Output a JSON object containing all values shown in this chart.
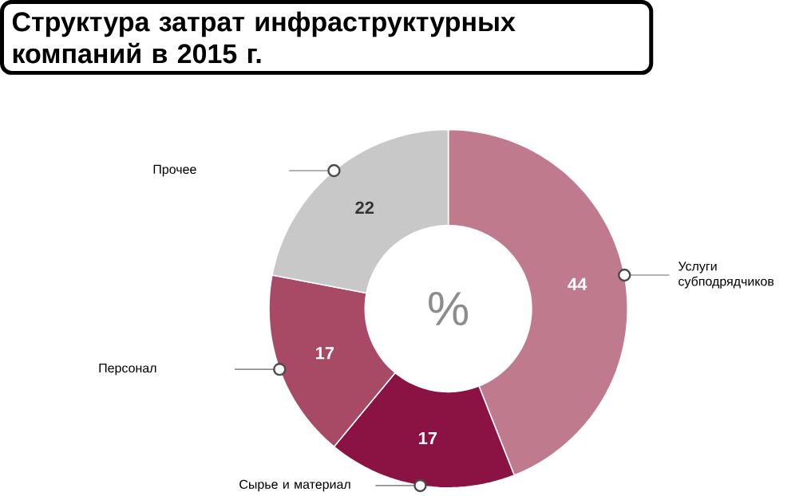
{
  "chart_data": {
    "type": "donut",
    "title": "Структура затрат инфраструктурных компаний в 2015 г.",
    "categories": [
      "Услуги субподрядчиков",
      "Сырье и материал",
      "Персонал",
      "Прочее"
    ],
    "values": [
      44,
      17,
      17,
      22
    ],
    "colors": [
      "#c07a8e",
      "#8b1344",
      "#a84a66",
      "#c8c8c8"
    ],
    "data_labels": true,
    "annotations": [
      "%"
    ]
  }
}
